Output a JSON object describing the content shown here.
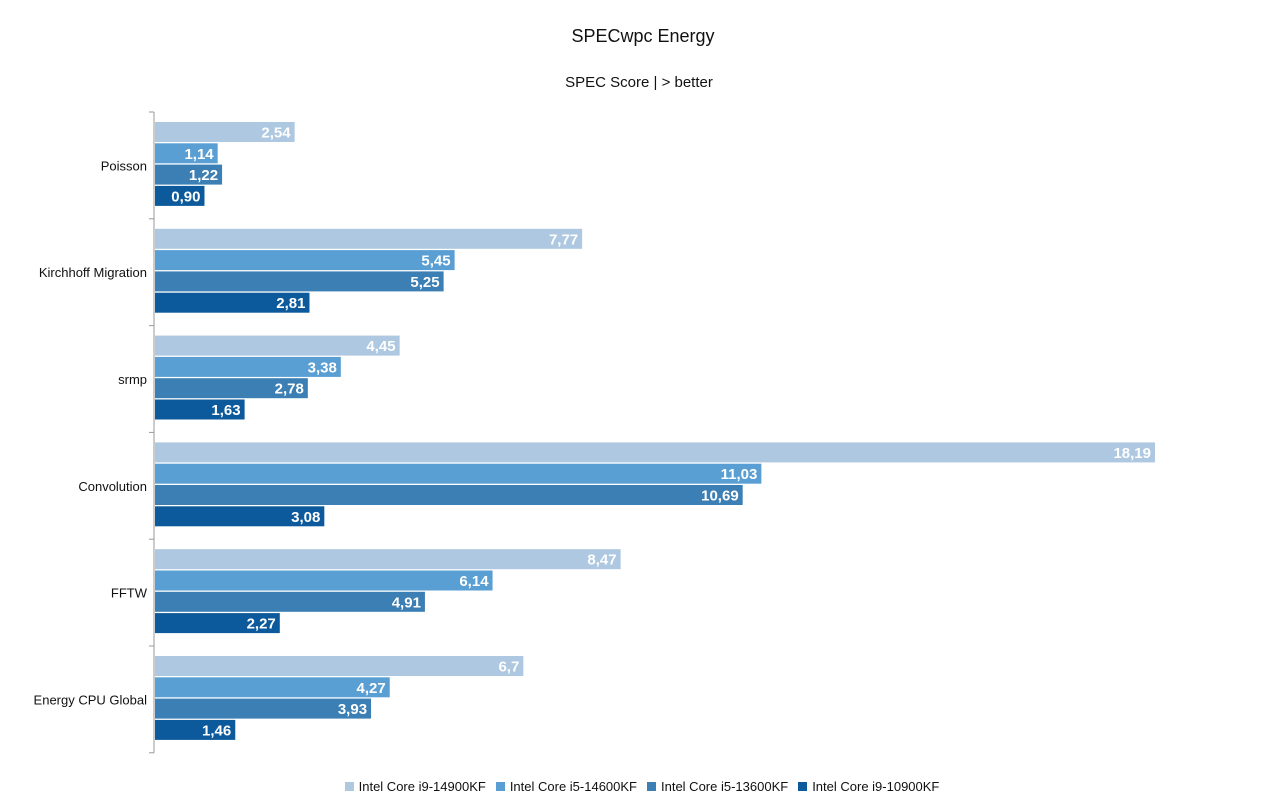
{
  "chart_data": {
    "type": "bar",
    "orientation": "horizontal",
    "title": "SPECwpc Energy",
    "subtitle": "SPEC Score | > better",
    "categories": [
      "Poisson",
      "Kirchhoff Migration",
      "srmp",
      "Convolution",
      "FFTW",
      "Energy CPU Global"
    ],
    "series": [
      {
        "name": "Intel Core i9-14900KF",
        "color": "#adc8e0",
        "values": [
          2.54,
          7.77,
          4.45,
          18.19,
          8.47,
          6.7
        ],
        "labels": [
          "2,54",
          "7,77",
          "4,45",
          "18,19",
          "8,47",
          "6,7"
        ]
      },
      {
        "name": "Intel Core i5-14600KF",
        "color": "#5a9fd3",
        "values": [
          1.14,
          5.45,
          3.38,
          11.03,
          6.14,
          4.27
        ],
        "labels": [
          "1,14",
          "5,45",
          "3,38",
          "11,03",
          "6,14",
          "4,27"
        ]
      },
      {
        "name": "Intel Core i5-13600KF",
        "color": "#3c7fb4",
        "values": [
          1.22,
          5.25,
          2.78,
          10.69,
          4.91,
          3.93
        ],
        "labels": [
          "1,22",
          "5,25",
          "2,78",
          "10,69",
          "4,91",
          "3,93"
        ]
      },
      {
        "name": "Intel Core i9-10900KF",
        "color": "#0c5a9b",
        "values": [
          0.9,
          2.81,
          1.63,
          3.08,
          2.27,
          1.46
        ],
        "labels": [
          "0,90",
          "2,81",
          "1,63",
          "3,08",
          "2,27",
          "1,46"
        ]
      }
    ],
    "xlim": [
      0,
      18.19
    ],
    "grid": false,
    "legend_position": "bottom"
  }
}
